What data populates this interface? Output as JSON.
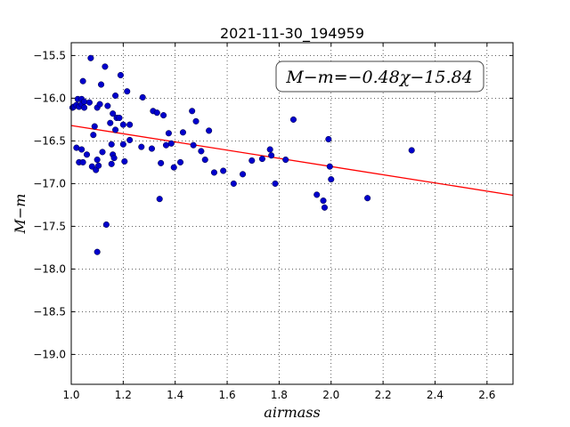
{
  "chart_data": {
    "type": "scatter",
    "title": "2021-11-30_194959",
    "xlabel": "airmass",
    "ylabel": "M−m",
    "xlim": [
      1.0,
      2.7
    ],
    "ylim": [
      -15.35,
      -19.35
    ],
    "y_inverted": true,
    "grid": true,
    "xticks": [
      1.0,
      1.2,
      1.4,
      1.6,
      1.8,
      2.0,
      2.2,
      2.4,
      2.6
    ],
    "xtick_labels": [
      "1.0",
      "1.2",
      "1.4",
      "1.6",
      "1.8",
      "2.0",
      "2.2",
      "2.4",
      "2.6"
    ],
    "yticks": [
      -15.5,
      -16.0,
      -16.5,
      -17.0,
      -17.5,
      -18.0,
      -18.5,
      -19.0
    ],
    "ytick_labels": [
      "−15.5",
      "−16.0",
      "−16.5",
      "−17.0",
      "−17.5",
      "−18.0",
      "−18.5",
      "−19.0"
    ],
    "annotation": "M−m=−0.48χ−15.84",
    "fit_line": {
      "slope": -0.48,
      "intercept": -15.84,
      "color": "#ff0000"
    },
    "point_color": "#0000cc",
    "points": [
      [
        1.005,
        -16.11
      ],
      [
        1.01,
        -16.1
      ],
      [
        1.02,
        -16.08
      ],
      [
        1.025,
        -16.01
      ],
      [
        1.03,
        -16.1
      ],
      [
        1.04,
        -16.01
      ],
      [
        1.04,
        -16.07
      ],
      [
        1.045,
        -15.8
      ],
      [
        1.05,
        -16.04
      ],
      [
        1.05,
        -16.11
      ],
      [
        1.07,
        -16.05
      ],
      [
        1.075,
        -15.53
      ],
      [
        1.09,
        -16.33
      ],
      [
        1.1,
        -16.11
      ],
      [
        1.11,
        -16.07
      ],
      [
        1.115,
        -15.84
      ],
      [
        1.13,
        -15.63
      ],
      [
        1.02,
        -16.58
      ],
      [
        1.03,
        -16.75
      ],
      [
        1.04,
        -16.6
      ],
      [
        1.045,
        -16.75
      ],
      [
        1.06,
        -16.66
      ],
      [
        1.08,
        -16.8
      ],
      [
        1.085,
        -16.43
      ],
      [
        1.095,
        -16.84
      ],
      [
        1.1,
        -16.72
      ],
      [
        1.105,
        -16.79
      ],
      [
        1.12,
        -16.63
      ],
      [
        1.14,
        -16.09
      ],
      [
        1.15,
        -16.29
      ],
      [
        1.155,
        -16.54
      ],
      [
        1.155,
        -16.77
      ],
      [
        1.16,
        -16.66
      ],
      [
        1.16,
        -16.18
      ],
      [
        1.165,
        -16.7
      ],
      [
        1.17,
        -16.37
      ],
      [
        1.175,
        -16.23
      ],
      [
        1.17,
        -15.97
      ],
      [
        1.185,
        -16.23
      ],
      [
        1.19,
        -15.73
      ],
      [
        1.2,
        -16.31
      ],
      [
        1.2,
        -16.54
      ],
      [
        1.205,
        -16.74
      ],
      [
        1.215,
        -15.92
      ],
      [
        1.225,
        -16.31
      ],
      [
        1.225,
        -16.49
      ],
      [
        1.27,
        -16.57
      ],
      [
        1.275,
        -15.99
      ],
      [
        1.31,
        -16.59
      ],
      [
        1.315,
        -16.15
      ],
      [
        1.33,
        -16.17
      ],
      [
        1.345,
        -16.76
      ],
      [
        1.34,
        -17.18
      ],
      [
        1.355,
        -16.2
      ],
      [
        1.365,
        -16.55
      ],
      [
        1.375,
        -16.41
      ],
      [
        1.385,
        -16.53
      ],
      [
        1.395,
        -16.81
      ],
      [
        1.42,
        -16.75
      ],
      [
        1.43,
        -16.4
      ],
      [
        1.465,
        -16.15
      ],
      [
        1.47,
        -16.55
      ],
      [
        1.48,
        -16.27
      ],
      [
        1.5,
        -16.62
      ],
      [
        1.515,
        -16.72
      ],
      [
        1.53,
        -16.38
      ],
      [
        1.55,
        -16.87
      ],
      [
        1.585,
        -16.85
      ],
      [
        1.625,
        -17.0
      ],
      [
        1.66,
        -16.89
      ],
      [
        1.695,
        -16.73
      ],
      [
        1.735,
        -16.71
      ],
      [
        1.765,
        -16.6
      ],
      [
        1.77,
        -16.67
      ],
      [
        1.785,
        -17.0
      ],
      [
        1.825,
        -16.72
      ],
      [
        1.855,
        -16.25
      ],
      [
        1.945,
        -17.13
      ],
      [
        1.97,
        -17.2
      ],
      [
        1.975,
        -17.28
      ],
      [
        1.99,
        -16.48
      ],
      [
        1.995,
        -16.8
      ],
      [
        2.0,
        -16.95
      ],
      [
        2.14,
        -17.17
      ],
      [
        2.31,
        -16.61
      ],
      [
        1.135,
        -17.48
      ],
      [
        1.1,
        -17.8
      ]
    ]
  }
}
